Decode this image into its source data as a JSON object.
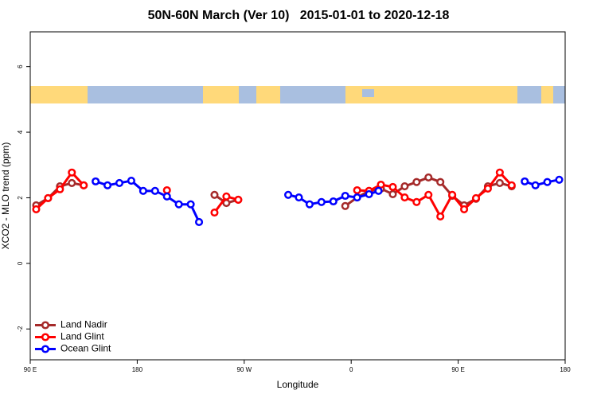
{
  "chart_data": {
    "type": "line",
    "title": "50N-60N March (Ver 10)   2015-01-01 to 2020-12-18",
    "x_label": "Longitude",
    "y_label": "XCO2 - MLO trend (ppm)",
    "xlim": [
      90,
      540
    ],
    "xticks": [
      {
        "value": 90,
        "label": "90 E"
      },
      180,
      {
        "value": 270,
        "label": "90 W"
      },
      {
        "value": 360,
        "label": "0"
      },
      {
        "value": 450,
        "label": "90 E"
      },
      {
        "value": 540,
        "label": "180"
      }
    ],
    "ylim": [
      -2.94,
      7.06
    ],
    "yticks": [
      -2,
      0,
      2,
      4,
      6
    ],
    "legend": "bottom-left",
    "series": [
      {
        "name": "Land Nadir",
        "color": "#a52a2a",
        "x": [
          95,
          105,
          115,
          125,
          135,
          190,
          245,
          255,
          265,
          310,
          355,
          365,
          375,
          385,
          395,
          405,
          415,
          425,
          435,
          445,
          455,
          465,
          475,
          485,
          495
        ],
        "values": [
          1.77,
          1.99,
          2.35,
          2.45,
          2.38,
          null,
          2.09,
          1.84,
          1.94,
          null,
          1.75,
          2.01,
          2.21,
          2.28,
          2.11,
          2.35,
          2.48,
          2.62,
          2.48,
          2.06,
          1.77,
          1.97,
          2.35,
          2.45,
          2.35
        ]
      },
      {
        "name": "Land Glint",
        "color": "#ff0000",
        "x": [
          95,
          105,
          115,
          125,
          135,
          170,
          205,
          225,
          245,
          255,
          265,
          315,
          365,
          375,
          385,
          395,
          405,
          415,
          425,
          435,
          445,
          455,
          465,
          475,
          485,
          495
        ],
        "values": [
          1.65,
          1.99,
          2.26,
          2.77,
          2.38,
          null,
          2.23,
          null,
          1.55,
          2.04,
          1.94,
          null,
          2.23,
          2.21,
          2.4,
          2.33,
          2.01,
          1.87,
          2.09,
          1.43,
          2.09,
          1.65,
          1.99,
          2.28,
          2.77,
          2.38
        ]
      },
      {
        "name": "Ocean Glint",
        "color": "#0000ff",
        "x": [
          145,
          155,
          165,
          175,
          185,
          195,
          205,
          215,
          225,
          232,
          270,
          307,
          316,
          325,
          335,
          345,
          355,
          365,
          375,
          383,
          445,
          506,
          515,
          525,
          535
        ],
        "values": [
          2.5,
          2.38,
          2.45,
          2.52,
          2.21,
          2.21,
          2.04,
          1.8,
          1.8,
          1.26,
          null,
          2.09,
          2.01,
          1.8,
          1.87,
          1.89,
          2.06,
          2.01,
          2.11,
          2.21,
          null,
          2.5,
          2.38,
          2.48,
          2.55
        ]
      }
    ]
  }
}
